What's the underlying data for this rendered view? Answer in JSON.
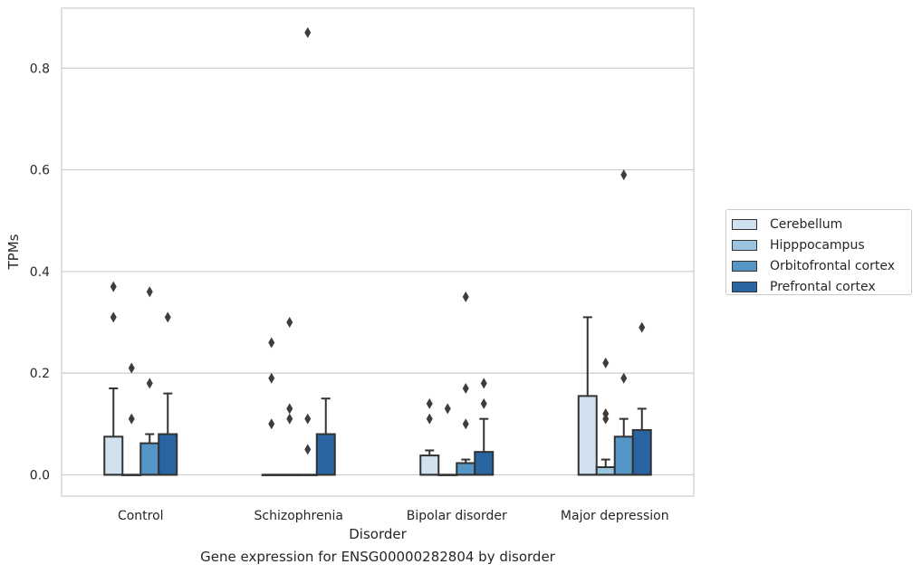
{
  "chart_data": {
    "type": "box",
    "title": "",
    "caption": "Gene expression for ENSG00000282804 by disorder",
    "xlabel": "Disorder",
    "ylabel": "TPMs",
    "ylim": [
      -0.042,
      0.918
    ],
    "yticks": [
      0.0,
      0.2,
      0.4,
      0.6,
      0.8
    ],
    "grid": "horizontal",
    "legend_position": "center-right",
    "categories": [
      "Control",
      "Schizophrenia",
      "Bipolar disorder",
      "Major depression"
    ],
    "series": [
      {
        "name": "Cerebellum",
        "color": "#d1e1f0",
        "boxes": [
          {
            "q1": 0.0,
            "median": 0.0,
            "q3": 0.075,
            "whisker_low": 0.0,
            "whisker_high": 0.17,
            "outliers": [
              0.37,
              0.31
            ]
          },
          {
            "q1": 0.0,
            "median": 0.0,
            "q3": 0.0,
            "whisker_low": 0.0,
            "whisker_high": 0.0,
            "outliers": [
              0.26,
              0.19,
              0.1
            ]
          },
          {
            "q1": 0.0,
            "median": 0.0,
            "q3": 0.038,
            "whisker_low": 0.0,
            "whisker_high": 0.048,
            "outliers": [
              0.14,
              0.11
            ]
          },
          {
            "q1": 0.0,
            "median": 0.0,
            "q3": 0.155,
            "whisker_low": 0.0,
            "whisker_high": 0.31,
            "outliers": []
          }
        ]
      },
      {
        "name": "Hipppocampus",
        "color": "#9ac3dd",
        "boxes": [
          {
            "q1": 0.0,
            "median": 0.0,
            "q3": 0.0,
            "whisker_low": 0.0,
            "whisker_high": 0.0,
            "outliers": [
              0.21,
              0.11
            ]
          },
          {
            "q1": 0.0,
            "median": 0.0,
            "q3": 0.0,
            "whisker_low": 0.0,
            "whisker_high": 0.0,
            "outliers": [
              0.3,
              0.13,
              0.11
            ]
          },
          {
            "q1": 0.0,
            "median": 0.0,
            "q3": 0.0,
            "whisker_low": 0.0,
            "whisker_high": 0.0,
            "outliers": [
              0.13
            ]
          },
          {
            "q1": 0.0,
            "median": 0.0,
            "q3": 0.015,
            "whisker_low": 0.0,
            "whisker_high": 0.03,
            "outliers": [
              0.22,
              0.12,
              0.11
            ]
          }
        ]
      },
      {
        "name": "Orbitofrontal cortex",
        "color": "#5596c6",
        "boxes": [
          {
            "q1": 0.0,
            "median": 0.0,
            "q3": 0.062,
            "whisker_low": 0.0,
            "whisker_high": 0.08,
            "outliers": [
              0.36,
              0.18
            ]
          },
          {
            "q1": 0.0,
            "median": 0.0,
            "q3": 0.0,
            "whisker_low": 0.0,
            "whisker_high": 0.0,
            "outliers": [
              0.87,
              0.11,
              0.05
            ]
          },
          {
            "q1": 0.0,
            "median": 0.0,
            "q3": 0.023,
            "whisker_low": 0.0,
            "whisker_high": 0.03,
            "outliers": [
              0.35,
              0.17,
              0.1
            ]
          },
          {
            "q1": 0.0,
            "median": 0.0,
            "q3": 0.075,
            "whisker_low": 0.0,
            "whisker_high": 0.11,
            "outliers": [
              0.59,
              0.19
            ]
          }
        ]
      },
      {
        "name": "Prefrontal cortex",
        "color": "#2865a2",
        "boxes": [
          {
            "q1": 0.0,
            "median": 0.0,
            "q3": 0.08,
            "whisker_low": 0.0,
            "whisker_high": 0.16,
            "outliers": [
              0.31
            ]
          },
          {
            "q1": 0.0,
            "median": 0.0,
            "q3": 0.08,
            "whisker_low": 0.0,
            "whisker_high": 0.15,
            "outliers": []
          },
          {
            "q1": 0.0,
            "median": 0.0,
            "q3": 0.045,
            "whisker_low": 0.0,
            "whisker_high": 0.11,
            "outliers": [
              0.18,
              0.14
            ]
          },
          {
            "q1": 0.0,
            "median": 0.0,
            "q3": 0.088,
            "whisker_low": 0.0,
            "whisker_high": 0.13,
            "outliers": [
              0.29
            ]
          }
        ]
      }
    ]
  }
}
